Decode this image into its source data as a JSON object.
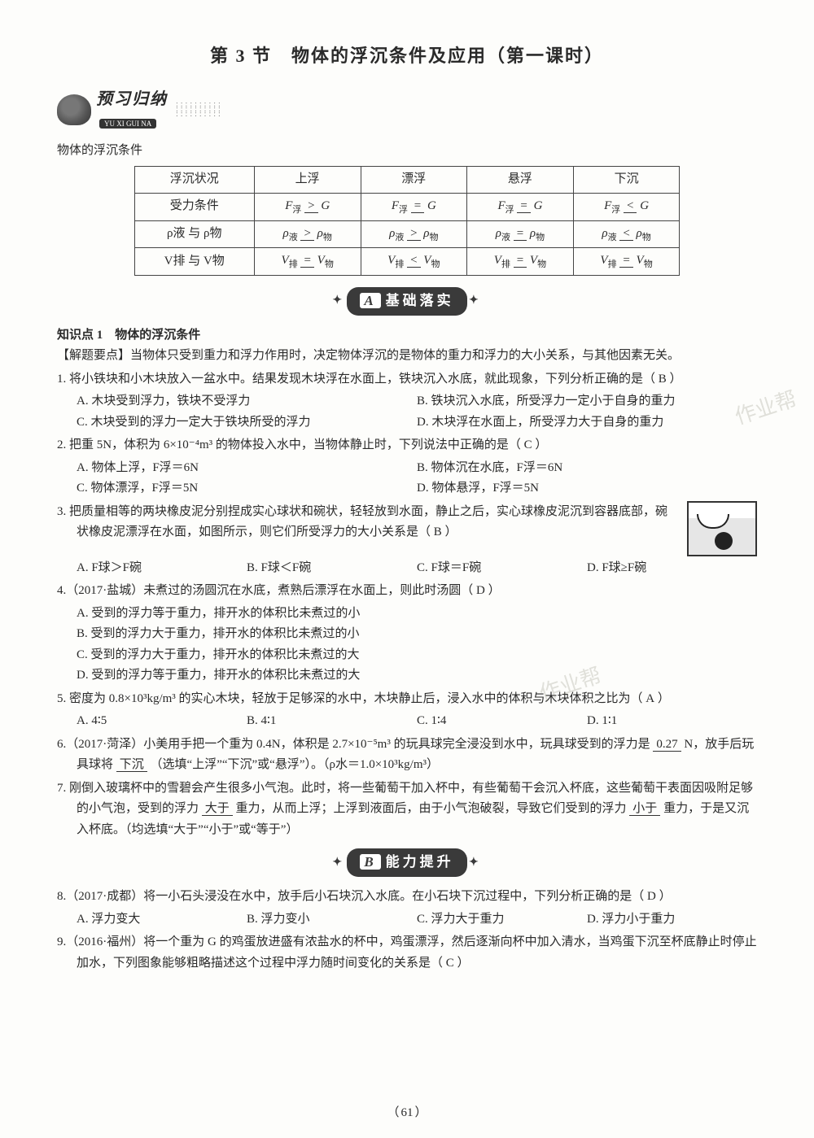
{
  "page": {
    "title": "第 3 节　物体的浮沉条件及应用（第一课时）",
    "preview_header": {
      "label": "预习归纳",
      "sub": "YU XI GUI NA"
    },
    "subtitle": "物体的浮沉条件",
    "page_number": "61",
    "watermark": "作业帮"
  },
  "table": {
    "columns": [
      "浮沉状况",
      "上浮",
      "漂浮",
      "悬浮",
      "下沉"
    ],
    "rows": [
      {
        "label": "受力条件",
        "cells": [
          {
            "l": "F",
            "li": "浮",
            "op": ">",
            "r": "G",
            "ri": ""
          },
          {
            "l": "F",
            "li": "浮",
            "op": "=",
            "r": "G",
            "ri": ""
          },
          {
            "l": "F",
            "li": "浮",
            "op": "=",
            "r": "G",
            "ri": ""
          },
          {
            "l": "F",
            "li": "浮",
            "op": "<",
            "r": "G",
            "ri": ""
          }
        ]
      },
      {
        "label": "ρ液 与 ρ物",
        "cells": [
          {
            "l": "ρ",
            "li": "液",
            "op": ">",
            "r": "ρ",
            "ri": "物"
          },
          {
            "l": "ρ",
            "li": "液",
            "op": ">",
            "r": "ρ",
            "ri": "物"
          },
          {
            "l": "ρ",
            "li": "液",
            "op": "=",
            "r": "ρ",
            "ri": "物"
          },
          {
            "l": "ρ",
            "li": "液",
            "op": "<",
            "r": "ρ",
            "ri": "物"
          }
        ]
      },
      {
        "label": "V排 与 V物",
        "cells": [
          {
            "l": "V",
            "li": "排",
            "op": "=",
            "r": "V",
            "ri": "物"
          },
          {
            "l": "V",
            "li": "排",
            "op": "<",
            "r": "V",
            "ri": "物"
          },
          {
            "l": "V",
            "li": "排",
            "op": "=",
            "r": "V",
            "ri": "物"
          },
          {
            "l": "V",
            "li": "排",
            "op": "=",
            "r": "V",
            "ri": "物"
          }
        ]
      }
    ]
  },
  "badgeA": {
    "letter": "A",
    "text": "基础落实"
  },
  "kp1": {
    "heading": "知识点 1　物体的浮沉条件",
    "note": "【解题要点】当物体只受到重力和浮力作用时，决定物体浮沉的是物体的重力和浮力的大小关系，与其他因素无关。"
  },
  "q1": {
    "stem": "1. 将小铁块和小木块放入一盆水中。结果发现木块浮在水面上，铁块沉入水底，就此现象，下列分析正确的是（",
    "ans": "B",
    "tail": "）",
    "opts": [
      "A. 木块受到浮力，铁块不受浮力",
      "B. 铁块沉入水底，所受浮力一定小于自身的重力",
      "C. 木块受到的浮力一定大于铁块所受的浮力",
      "D. 木块浮在水面上，所受浮力大于自身的重力"
    ]
  },
  "q2": {
    "stem": "2. 把重 5N，体积为 6×10⁻⁴m³ 的物体投入水中，当物体静止时，下列说法中正确的是（",
    "ans": "C",
    "tail": "）",
    "opts": [
      "A. 物体上浮，F浮＝6N",
      "B. 物体沉在水底，F浮＝6N",
      "C. 物体漂浮，F浮＝5N",
      "D. 物体悬浮，F浮＝5N"
    ]
  },
  "q3": {
    "stem": "3. 把质量相等的两块橡皮泥分别捏成实心球状和碗状，轻轻放到水面，静止之后，实心球橡皮泥沉到容器底部，碗状橡皮泥漂浮在水面，如图所示，则它们所受浮力的大小关系是（",
    "ans": "B",
    "tail": "）",
    "opts": [
      "A. F球＞F碗",
      "B. F球＜F碗",
      "C. F球＝F碗",
      "D. F球≥F碗"
    ]
  },
  "q4": {
    "stem": "4.（2017·盐城）未煮过的汤圆沉在水底，煮熟后漂浮在水面上，则此时汤圆（",
    "ans": "D",
    "tail": "）",
    "opts": [
      "A. 受到的浮力等于重力，排开水的体积比未煮过的小",
      "B. 受到的浮力大于重力，排开水的体积比未煮过的小",
      "C. 受到的浮力大于重力，排开水的体积比未煮过的大",
      "D. 受到的浮力等于重力，排开水的体积比未煮过的大"
    ]
  },
  "q5": {
    "stem": "5. 密度为 0.8×10³kg/m³ 的实心木块，轻放于足够深的水中，木块静止后，浸入水中的体积与木块体积之比为（",
    "ans": "A",
    "tail": "）",
    "opts": [
      "A. 4∶5",
      "B. 4∶1",
      "C. 1∶4",
      "D. 1∶1"
    ]
  },
  "q6": {
    "pre": "6.（2017·菏泽）小美用手把一个重为 0.4N，体积是 2.7×10⁻⁵m³ 的玩具球完全浸没到水中，玩具球受到的浮力是",
    "fill1": "0.27",
    "mid1": "N，放手后玩具球将",
    "fill2": "下沉",
    "post": "（选填“上浮”“下沉”或“悬浮”）。（ρ水＝1.0×10³kg/m³）"
  },
  "q7": {
    "pre": "7. 刚倒入玻璃杯中的雪碧会产生很多小气泡。此时，将一些葡萄干加入杯中，有些葡萄干会沉入杯底，这些葡萄干表面因吸附足够的小气泡，受到的浮力",
    "fill1": "大于",
    "mid1": "重力，从而上浮；上浮到液面后，由于小气泡破裂，导致它们受到的浮力",
    "fill2": "小于",
    "post": "重力，于是又沉入杯底。（均选填“大于”“小于”或“等于”）"
  },
  "badgeB": {
    "letter": "B",
    "text": "能力提升"
  },
  "q8": {
    "stem": "8.（2017·成都）将一小石头浸没在水中，放手后小石块沉入水底。在小石块下沉过程中，下列分析正确的是（",
    "ans": "D",
    "tail": "）",
    "opts": [
      "A. 浮力变大",
      "B. 浮力变小",
      "C. 浮力大于重力",
      "D. 浮力小于重力"
    ]
  },
  "q9": {
    "stem": "9.（2016·福州）将一个重为 G 的鸡蛋放进盛有浓盐水的杯中，鸡蛋漂浮，然后逐渐向杯中加入清水，当鸡蛋下沉至杯底静止时停止加水，下列图象能够粗略描述这个过程中浮力随时间变化的关系是（",
    "ans": "C",
    "tail": "）"
  }
}
